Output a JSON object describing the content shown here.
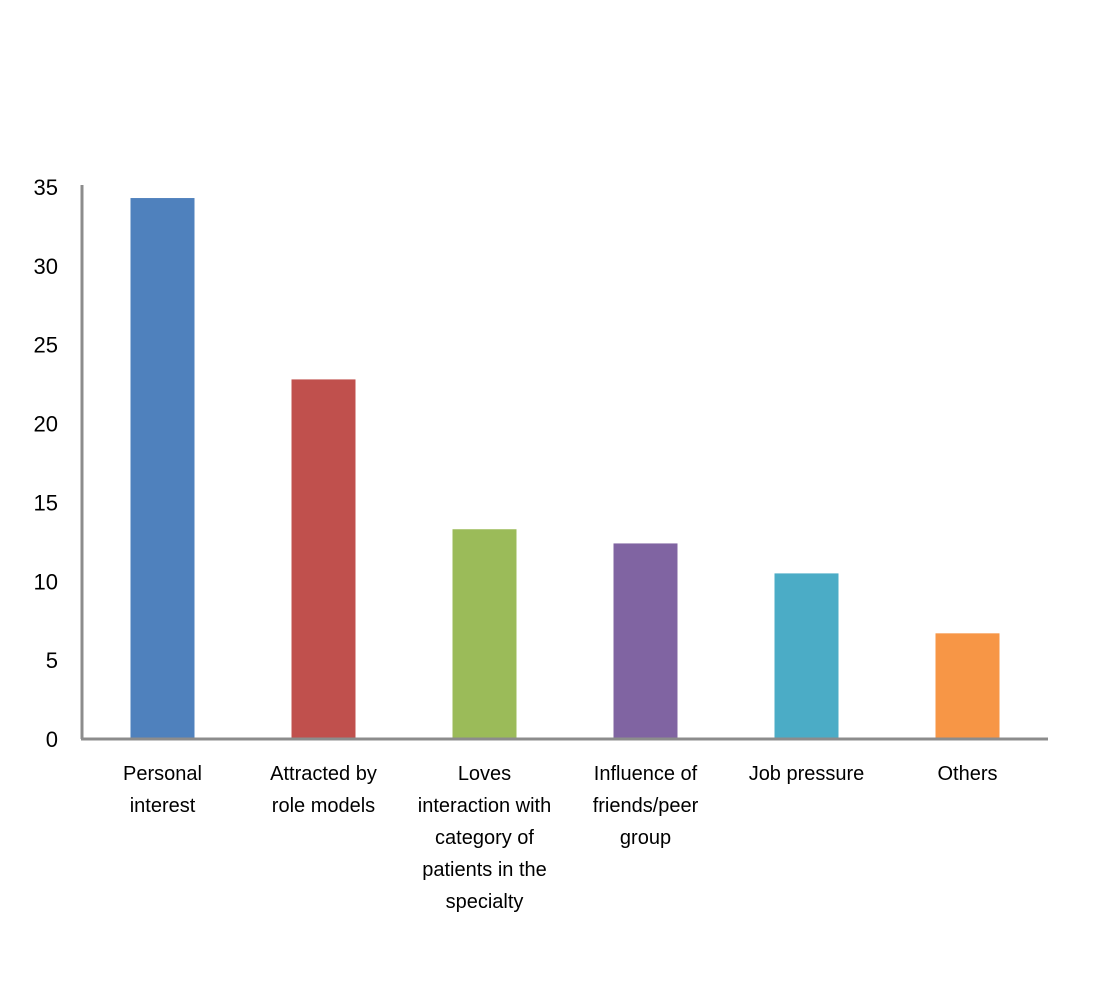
{
  "chart_data": {
    "type": "bar",
    "title": "",
    "xlabel": "",
    "ylabel": "",
    "categories": [
      [
        "Personal",
        "interest"
      ],
      [
        "Attracted by",
        "role models"
      ],
      [
        "Loves",
        "interaction with",
        "category of",
        "patients in the",
        "specialty"
      ],
      [
        "Influence of",
        "friends/peer",
        "group"
      ],
      [
        "Job pressure"
      ],
      [
        "Others"
      ]
    ],
    "values": [
      34.3,
      22.8,
      13.3,
      12.4,
      10.5,
      6.7
    ],
    "colors": [
      "#4f81bd",
      "#c0504d",
      "#9bbb59",
      "#8064a2",
      "#4bacc6",
      "#f79646"
    ],
    "ylim": [
      0,
      35
    ],
    "yticks": [
      "0",
      "5",
      "10",
      "15",
      "20",
      "25",
      "30",
      "35"
    ],
    "ytick_values": [
      0,
      5,
      10,
      15,
      20,
      25,
      30,
      35
    ],
    "grid": false,
    "legend": "none"
  }
}
